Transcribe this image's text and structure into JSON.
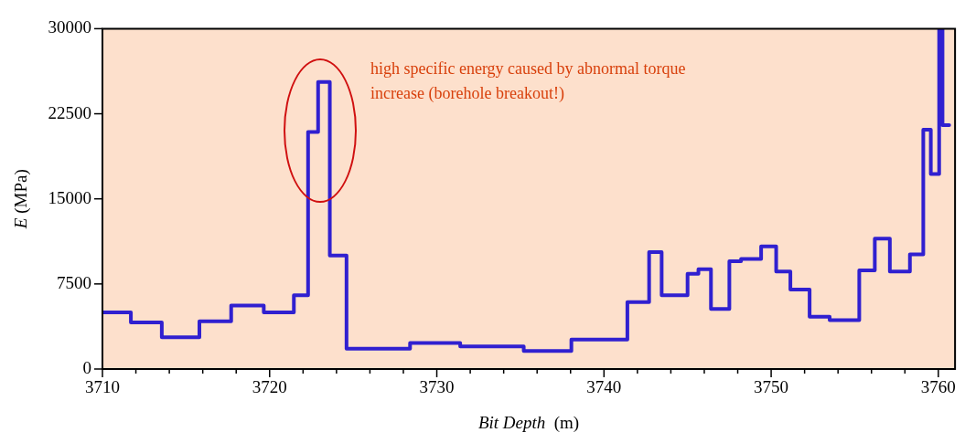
{
  "chart_data": {
    "type": "step",
    "xlabel": "Bit Depth  (m)",
    "ylabel": "E (MPa)",
    "annotations": [
      "high specific energy caused by abnormal torque increase (borehole breakout!)"
    ],
    "x": [
      3710,
      3711.7,
      3713.55,
      3715.8,
      3717.7,
      3719.65,
      3721.45,
      3722.3,
      3722.9,
      3723.6,
      3724.6,
      3728.4,
      3731.4,
      3735.2,
      3738.05,
      3741.4,
      3742.7,
      3743.45,
      3745.0,
      3745.65,
      3746.4,
      3747.5,
      3748.2,
      3749.4,
      3750.3,
      3751.15,
      3752.3,
      3753.5,
      3755.27,
      3756.2,
      3757.1,
      3758.3,
      3759.1,
      3759.55,
      3760.05,
      3760.25,
      3760.65
    ],
    "series": [
      {
        "color": "#3020d0",
        "values": [
          5000,
          4100,
          2800,
          4200,
          5600,
          5000,
          6500,
          20900,
          25300,
          10000,
          1800,
          2300,
          2000,
          1600,
          2600,
          5900,
          10300,
          6500,
          8400,
          8800,
          5300,
          9500,
          9700,
          10800,
          8600,
          7000,
          4600,
          4300,
          8700,
          11500,
          8600,
          10100,
          21100,
          17200,
          30000,
          21500,
          21500
        ]
      }
    ],
    "xlim": [
      3710,
      3761
    ],
    "ylim": [
      0,
      30000
    ],
    "xticks": [
      3710,
      {
        "value": 3712,
        "label": null
      },
      {
        "value": 3714,
        "label": null
      },
      {
        "value": 3716,
        "label": null
      },
      {
        "value": 3718,
        "label": null
      },
      3720,
      {
        "value": 3722,
        "label": null
      },
      {
        "value": 3724,
        "label": null
      },
      {
        "value": 3726,
        "label": null
      },
      {
        "value": 3728,
        "label": null
      },
      3730,
      {
        "value": 3732,
        "label": null
      },
      {
        "value": 3734,
        "label": null
      },
      {
        "value": 3736,
        "label": null
      },
      {
        "value": 3738,
        "label": null
      },
      3740,
      {
        "value": 3742,
        "label": null
      },
      {
        "value": 3744,
        "label": null
      },
      {
        "value": 3746,
        "label": null
      },
      {
        "value": 3748,
        "label": null
      },
      3750,
      {
        "value": 3752,
        "label": null
      },
      {
        "value": 3754,
        "label": null
      },
      {
        "value": 3756,
        "label": null
      },
      {
        "value": 3758,
        "label": null
      },
      3760
    ],
    "yticks": [
      0,
      7500,
      15000,
      22500,
      30000
    ],
    "grid": false,
    "legend": false,
    "line_style": "solid",
    "marker": "none"
  }
}
